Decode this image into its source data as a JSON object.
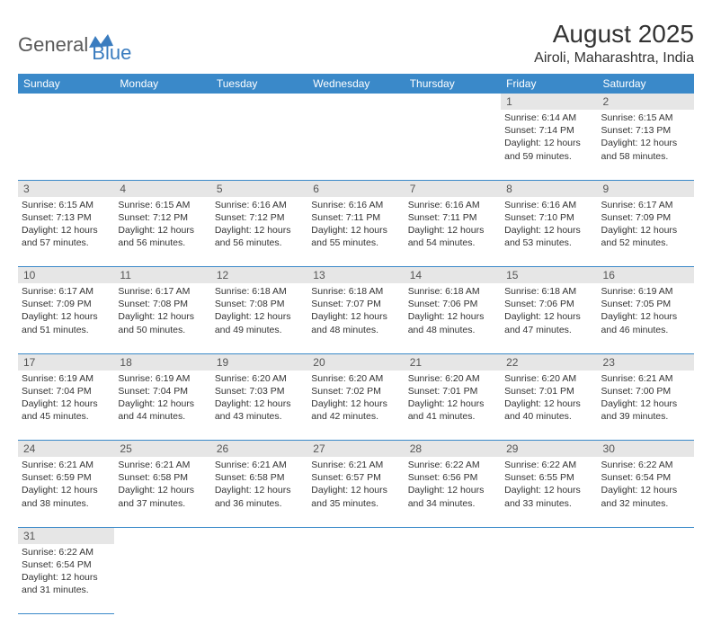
{
  "brand": {
    "general": "General",
    "blue": "Blue"
  },
  "title": {
    "month": "August 2025",
    "location": "Airoli, Maharashtra, India"
  },
  "colors": {
    "header_bg": "#3a89c9",
    "header_text": "#ffffff",
    "daynum_bg": "#e6e6e6",
    "border": "#3a89c9",
    "logo_gray": "#5a5a5a",
    "logo_blue": "#3a7cbf",
    "text": "#333333"
  },
  "daynames": [
    "Sunday",
    "Monday",
    "Tuesday",
    "Wednesday",
    "Thursday",
    "Friday",
    "Saturday"
  ],
  "weeks": [
    [
      null,
      null,
      null,
      null,
      null,
      {
        "n": "1",
        "sr": "6:14 AM",
        "ss": "7:14 PM",
        "dh": "12",
        "dm": "59"
      },
      {
        "n": "2",
        "sr": "6:15 AM",
        "ss": "7:13 PM",
        "dh": "12",
        "dm": "58"
      }
    ],
    [
      {
        "n": "3",
        "sr": "6:15 AM",
        "ss": "7:13 PM",
        "dh": "12",
        "dm": "57"
      },
      {
        "n": "4",
        "sr": "6:15 AM",
        "ss": "7:12 PM",
        "dh": "12",
        "dm": "56"
      },
      {
        "n": "5",
        "sr": "6:16 AM",
        "ss": "7:12 PM",
        "dh": "12",
        "dm": "56"
      },
      {
        "n": "6",
        "sr": "6:16 AM",
        "ss": "7:11 PM",
        "dh": "12",
        "dm": "55"
      },
      {
        "n": "7",
        "sr": "6:16 AM",
        "ss": "7:11 PM",
        "dh": "12",
        "dm": "54"
      },
      {
        "n": "8",
        "sr": "6:16 AM",
        "ss": "7:10 PM",
        "dh": "12",
        "dm": "53"
      },
      {
        "n": "9",
        "sr": "6:17 AM",
        "ss": "7:09 PM",
        "dh": "12",
        "dm": "52"
      }
    ],
    [
      {
        "n": "10",
        "sr": "6:17 AM",
        "ss": "7:09 PM",
        "dh": "12",
        "dm": "51"
      },
      {
        "n": "11",
        "sr": "6:17 AM",
        "ss": "7:08 PM",
        "dh": "12",
        "dm": "50"
      },
      {
        "n": "12",
        "sr": "6:18 AM",
        "ss": "7:08 PM",
        "dh": "12",
        "dm": "49"
      },
      {
        "n": "13",
        "sr": "6:18 AM",
        "ss": "7:07 PM",
        "dh": "12",
        "dm": "48"
      },
      {
        "n": "14",
        "sr": "6:18 AM",
        "ss": "7:06 PM",
        "dh": "12",
        "dm": "48"
      },
      {
        "n": "15",
        "sr": "6:18 AM",
        "ss": "7:06 PM",
        "dh": "12",
        "dm": "47"
      },
      {
        "n": "16",
        "sr": "6:19 AM",
        "ss": "7:05 PM",
        "dh": "12",
        "dm": "46"
      }
    ],
    [
      {
        "n": "17",
        "sr": "6:19 AM",
        "ss": "7:04 PM",
        "dh": "12",
        "dm": "45"
      },
      {
        "n": "18",
        "sr": "6:19 AM",
        "ss": "7:04 PM",
        "dh": "12",
        "dm": "44"
      },
      {
        "n": "19",
        "sr": "6:20 AM",
        "ss": "7:03 PM",
        "dh": "12",
        "dm": "43"
      },
      {
        "n": "20",
        "sr": "6:20 AM",
        "ss": "7:02 PM",
        "dh": "12",
        "dm": "42"
      },
      {
        "n": "21",
        "sr": "6:20 AM",
        "ss": "7:01 PM",
        "dh": "12",
        "dm": "41"
      },
      {
        "n": "22",
        "sr": "6:20 AM",
        "ss": "7:01 PM",
        "dh": "12",
        "dm": "40"
      },
      {
        "n": "23",
        "sr": "6:21 AM",
        "ss": "7:00 PM",
        "dh": "12",
        "dm": "39"
      }
    ],
    [
      {
        "n": "24",
        "sr": "6:21 AM",
        "ss": "6:59 PM",
        "dh": "12",
        "dm": "38"
      },
      {
        "n": "25",
        "sr": "6:21 AM",
        "ss": "6:58 PM",
        "dh": "12",
        "dm": "37"
      },
      {
        "n": "26",
        "sr": "6:21 AM",
        "ss": "6:58 PM",
        "dh": "12",
        "dm": "36"
      },
      {
        "n": "27",
        "sr": "6:21 AM",
        "ss": "6:57 PM",
        "dh": "12",
        "dm": "35"
      },
      {
        "n": "28",
        "sr": "6:22 AM",
        "ss": "6:56 PM",
        "dh": "12",
        "dm": "34"
      },
      {
        "n": "29",
        "sr": "6:22 AM",
        "ss": "6:55 PM",
        "dh": "12",
        "dm": "33"
      },
      {
        "n": "30",
        "sr": "6:22 AM",
        "ss": "6:54 PM",
        "dh": "12",
        "dm": "32"
      }
    ],
    [
      {
        "n": "31",
        "sr": "6:22 AM",
        "ss": "6:54 PM",
        "dh": "12",
        "dm": "31"
      },
      null,
      null,
      null,
      null,
      null,
      null
    ]
  ],
  "labels": {
    "sunrise": "Sunrise:",
    "sunset": "Sunset:",
    "daylight_pre": "Daylight:",
    "hours": "hours",
    "and": "and",
    "minutes": "minutes."
  }
}
